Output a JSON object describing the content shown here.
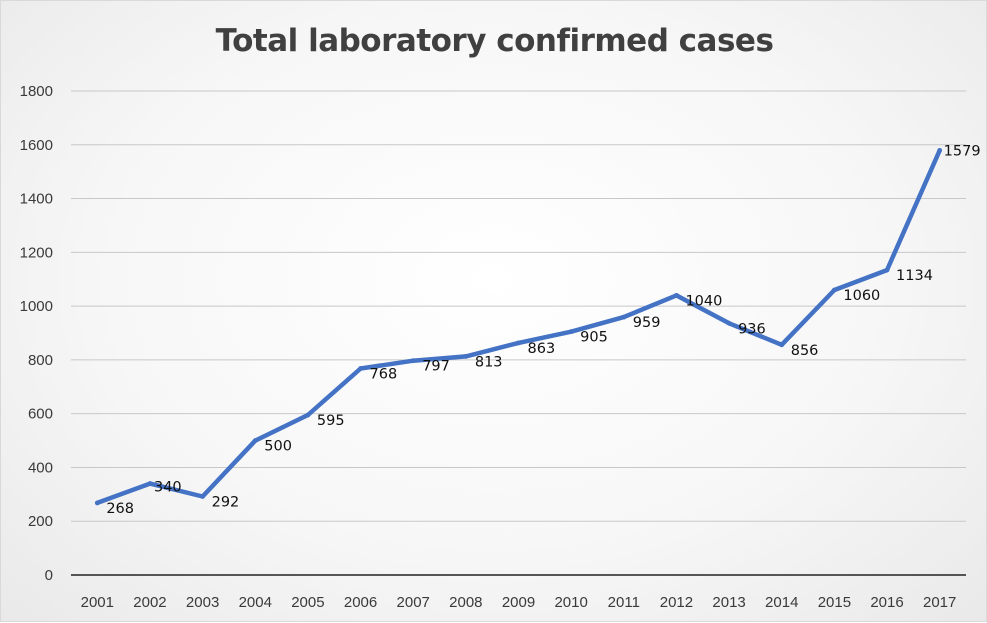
{
  "chart_data": {
    "type": "line",
    "title": "Total laboratory confirmed cases",
    "xlabel": "",
    "ylabel": "",
    "categories": [
      "2001",
      "2002",
      "2003",
      "2004",
      "2005",
      "2006",
      "2007",
      "2008",
      "2009",
      "2010",
      "2011",
      "2012",
      "2013",
      "2014",
      "2015",
      "2016",
      "2017"
    ],
    "series": [
      {
        "name": "Total laboratory confirmed cases",
        "values": [
          268,
          340,
          292,
          500,
          595,
          768,
          797,
          813,
          863,
          905,
          959,
          1040,
          936,
          856,
          1060,
          1134,
          1579
        ],
        "color": "#4472C4"
      }
    ],
    "ylim": [
      0,
      1800
    ],
    "yticks": [
      0,
      200,
      400,
      600,
      800,
      1000,
      1200,
      1400,
      1600,
      1800
    ],
    "grid": true,
    "legend": "none",
    "data_labels": true
  }
}
